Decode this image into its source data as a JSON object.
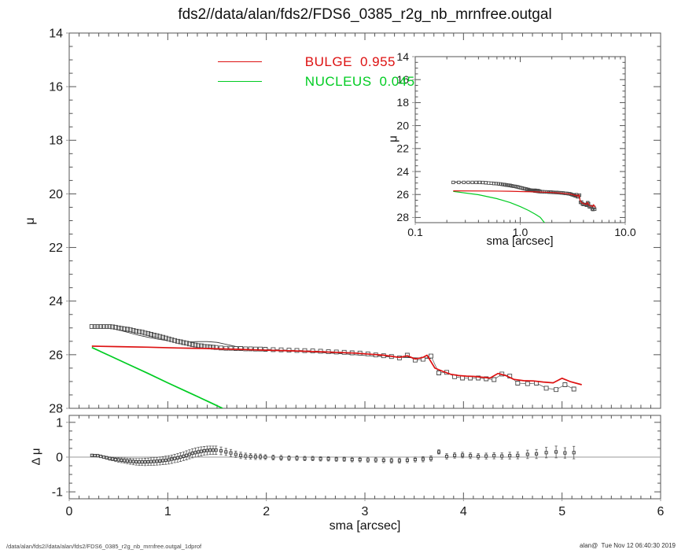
{
  "title": "fds2//data/alan/fds2/FDS6_0385_r2g_nb_mrnfree.outgal",
  "footer": {
    "left": "/data/alan/fds2//data/alan/fds2/FDS6_0385_r2g_nb_mrnfree.outgal_1dprof",
    "right": "alan@  Tue Nov 12 06:40:30 2019"
  },
  "legend": {
    "items": [
      {
        "label": "BULGE",
        "value": "0.955",
        "color": "#dd1111"
      },
      {
        "label": "NUCLEUS",
        "value": "0.045",
        "color": "#00cc22"
      }
    ]
  },
  "colors": {
    "background": "#ffffff",
    "axis": "#555555",
    "tick_label": "#1a1a1a",
    "data": "#4a4a4a",
    "model": "#2a2a2a",
    "bulge": "#dd1111",
    "nucleus": "#00cc22",
    "residual": "#666666",
    "zero_line": "#999999"
  },
  "chart_data": {
    "type": "line",
    "title": "fds2//data/alan/fds2/FDS6_0385_r2g_nb_mrnfree.outgal",
    "panels": [
      {
        "id": "main",
        "xlabel": "",
        "ylabel": "μ",
        "x_scale": "linear",
        "xlim": [
          0,
          6
        ],
        "ylim": [
          14,
          28
        ],
        "x_majors": [
          0,
          1,
          2,
          3,
          4,
          5,
          6
        ],
        "x_minor_step": 0.1,
        "x_tick_labels": null,
        "y_majors": [
          14,
          16,
          18,
          20,
          22,
          24,
          26,
          28
        ],
        "y_tick_labels": [
          "14",
          "16",
          "18",
          "20",
          "22",
          "24",
          "26",
          "28"
        ],
        "y_minor_step": 0.5,
        "grid": false,
        "series": [
          {
            "name": "data",
            "type": "squares",
            "line": true,
            "color": "#4a4a4a",
            "x": [
              0.23,
              0.26,
              0.29,
              0.32,
              0.35,
              0.38,
              0.41,
              0.44,
              0.47,
              0.5,
              0.53,
              0.56,
              0.59,
              0.62,
              0.65,
              0.68,
              0.71,
              0.74,
              0.77,
              0.8,
              0.83,
              0.86,
              0.89,
              0.92,
              0.95,
              0.98,
              1.01,
              1.04,
              1.07,
              1.1,
              1.13,
              1.16,
              1.19,
              1.22,
              1.25,
              1.28,
              1.31,
              1.34,
              1.37,
              1.4,
              1.43,
              1.46,
              1.49,
              1.54,
              1.59,
              1.64,
              1.69,
              1.74,
              1.79,
              1.84,
              1.89,
              1.94,
              1.99,
              2.07,
              2.15,
              2.23,
              2.31,
              2.39,
              2.47,
              2.55,
              2.63,
              2.71,
              2.79,
              2.87,
              2.95,
              3.03,
              3.11,
              3.19,
              3.27,
              3.35,
              3.43,
              3.51,
              3.59,
              3.67,
              3.75,
              3.83,
              3.91,
              3.99,
              4.07,
              4.15,
              4.23,
              4.31,
              4.39,
              4.47,
              4.55,
              4.65,
              4.74,
              4.84,
              4.94,
              5.03,
              5.12
            ],
            "y": [
              24.95,
              24.95,
              24.95,
              24.95,
              24.95,
              24.95,
              24.95,
              24.96,
              24.98,
              25.0,
              25.02,
              25.04,
              25.05,
              25.07,
              25.09,
              25.12,
              25.14,
              25.16,
              25.19,
              25.21,
              25.24,
              25.27,
              25.29,
              25.32,
              25.35,
              25.38,
              25.41,
              25.44,
              25.47,
              25.5,
              25.52,
              25.55,
              25.57,
              25.6,
              25.62,
              25.64,
              25.66,
              25.67,
              25.69,
              25.7,
              25.71,
              25.72,
              25.73,
              25.75,
              25.76,
              25.76,
              25.77,
              25.77,
              25.78,
              25.78,
              25.79,
              25.79,
              25.8,
              25.81,
              25.82,
              25.83,
              25.84,
              25.85,
              25.86,
              25.87,
              25.89,
              25.9,
              25.91,
              25.93,
              25.94,
              25.97,
              26.01,
              26.04,
              26.07,
              26.12,
              26.02,
              26.2,
              26.17,
              26.05,
              26.68,
              26.66,
              26.82,
              26.87,
              26.87,
              26.87,
              26.9,
              26.93,
              26.72,
              26.8,
              27.06,
              27.08,
              27.06,
              27.25,
              27.3,
              27.12,
              27.28
            ]
          },
          {
            "name": "model",
            "type": "line",
            "color": "#2a2a2a",
            "width": 0.8,
            "x": [
              0.23,
              0.3,
              0.4,
              0.5,
              0.6,
              0.7,
              0.8,
              0.9,
              1.0,
              1.1,
              1.2,
              1.3,
              1.4,
              1.5,
              1.6,
              1.7,
              1.8,
              1.9,
              2.0,
              2.2,
              2.4,
              2.6,
              2.8,
              3.0,
              3.2,
              3.4,
              3.6,
              3.67
            ],
            "y": [
              24.9,
              24.92,
              24.99,
              25.08,
              25.17,
              25.27,
              25.35,
              25.42,
              25.48,
              25.52,
              25.52,
              25.51,
              25.51,
              25.54,
              25.62,
              25.7,
              25.76,
              25.78,
              25.8,
              25.85,
              25.89,
              25.93,
              25.97,
              26.03,
              26.07,
              26.1,
              26.13,
              26.14
            ]
          },
          {
            "name": "bulge",
            "label": "BULGE",
            "fraction": 0.955,
            "type": "line",
            "color": "#dd1111",
            "width": 1.7,
            "x": [
              0.23,
              0.5,
              0.8,
              1.1,
              1.4,
              1.7,
              2.0,
              2.3,
              2.6,
              2.9,
              3.05,
              3.19,
              3.27,
              3.35,
              3.43,
              3.51,
              3.59,
              3.63,
              3.71,
              3.79,
              3.87,
              3.95,
              4.03,
              4.11,
              4.19,
              4.27,
              4.35,
              4.43,
              4.51,
              4.61,
              4.71,
              4.81,
              4.91,
              5.0,
              5.08,
              5.2
            ],
            "y": [
              25.68,
              25.7,
              25.72,
              25.75,
              25.77,
              25.8,
              25.83,
              25.86,
              25.9,
              25.94,
              25.98,
              26.02,
              26.06,
              26.1,
              26.04,
              26.16,
              26.1,
              26.02,
              26.5,
              26.62,
              26.73,
              26.78,
              26.8,
              26.81,
              26.84,
              26.87,
              26.7,
              26.78,
              26.92,
              26.97,
              26.98,
              27.02,
              27.05,
              26.88,
              27.0,
              27.12
            ]
          },
          {
            "name": "nucleus",
            "label": "NUCLEUS",
            "fraction": 0.045,
            "type": "line",
            "color": "#00cc22",
            "width": 1.7,
            "x": [
              0.23,
              0.4,
              0.6,
              0.8,
              1.0,
              1.2,
              1.4,
              1.55,
              1.72
            ],
            "y": [
              25.73,
              26.02,
              26.36,
              26.7,
              27.05,
              27.39,
              27.73,
              27.99,
              28.5
            ]
          }
        ]
      },
      {
        "id": "inset",
        "xlabel": "sma [arcsec]",
        "ylabel": "μ",
        "x_scale": "log",
        "xlim": [
          0.1,
          10
        ],
        "ylim": [
          14,
          28.45
        ],
        "x_majors": [
          0.1,
          1,
          10
        ],
        "x_tick_labels": [
          "0.1",
          "1.0",
          "10.0"
        ],
        "x_minors": [
          0.2,
          0.3,
          0.4,
          0.5,
          0.6,
          0.7,
          0.8,
          0.9,
          2,
          3,
          4,
          5,
          6,
          7,
          8,
          9
        ],
        "y_majors": [
          14,
          16,
          18,
          20,
          22,
          24,
          26,
          28
        ],
        "y_tick_labels": [
          "14",
          "16",
          "18",
          "20",
          "22",
          "24",
          "26",
          "28"
        ],
        "y_minor_step": 0.5,
        "grid": false,
        "series_from": 0
      },
      {
        "id": "residual",
        "xlabel": "sma [arcsec]",
        "ylabel": "Δ μ",
        "x_scale": "linear",
        "xlim": [
          0,
          6
        ],
        "ylim": [
          1.2,
          -1.2
        ],
        "x_majors": [
          0,
          1,
          2,
          3,
          4,
          5,
          6
        ],
        "x_minor_step": 0.1,
        "x_tick_labels": [
          "0",
          "1",
          "2",
          "3",
          "4",
          "5",
          "6"
        ],
        "y_majors": [
          1,
          0,
          -1
        ],
        "y_tick_labels": [
          "1",
          "0",
          "-1"
        ],
        "y_minor_step": 0.25,
        "zero_line": true,
        "grid": false,
        "series": [
          {
            "name": "delta_mu",
            "type": "errbar",
            "color": "#666666",
            "x_from": {
              "panel": 0,
              "series": "data"
            },
            "y": [
              0.05,
              0.045,
              0.04,
              0.02,
              0.0,
              -0.02,
              -0.04,
              -0.055,
              -0.07,
              -0.08,
              -0.09,
              -0.1,
              -0.11,
              -0.12,
              -0.13,
              -0.135,
              -0.14,
              -0.14,
              -0.14,
              -0.135,
              -0.13,
              -0.125,
              -0.12,
              -0.11,
              -0.1,
              -0.09,
              -0.08,
              -0.06,
              -0.04,
              -0.02,
              0.0,
              0.025,
              0.05,
              0.08,
              0.11,
              0.13,
              0.15,
              0.165,
              0.18,
              0.19,
              0.2,
              0.2,
              0.2,
              0.18,
              0.15,
              0.12,
              0.08,
              0.05,
              0.03,
              0.02,
              0.01,
              0.01,
              0.0,
              -0.01,
              -0.02,
              -0.03,
              -0.03,
              -0.04,
              -0.04,
              -0.05,
              -0.05,
              -0.06,
              -0.06,
              -0.07,
              -0.07,
              -0.08,
              -0.08,
              -0.09,
              -0.1,
              -0.1,
              -0.09,
              -0.07,
              -0.06,
              -0.04,
              0.15,
              0.02,
              0.05,
              0.06,
              0.04,
              0.02,
              0.03,
              0.04,
              0.03,
              0.04,
              0.05,
              0.08,
              0.09,
              0.13,
              0.15,
              0.12,
              0.13
            ],
            "err": [
              0.02,
              0.02,
              0.025,
              0.03,
              0.035,
              0.04,
              0.045,
              0.05,
              0.06,
              0.065,
              0.07,
              0.075,
              0.08,
              0.085,
              0.09,
              0.095,
              0.1,
              0.1,
              0.105,
              0.105,
              0.11,
              0.11,
              0.11,
              0.115,
              0.115,
              0.12,
              0.12,
              0.12,
              0.12,
              0.125,
              0.125,
              0.125,
              0.13,
              0.13,
              0.13,
              0.13,
              0.13,
              0.13,
              0.125,
              0.125,
              0.12,
              0.12,
              0.12,
              0.11,
              0.1,
              0.1,
              0.09,
              0.09,
              0.085,
              0.08,
              0.08,
              0.075,
              0.07,
              0.07,
              0.07,
              0.065,
              0.065,
              0.06,
              0.06,
              0.06,
              0.06,
              0.06,
              0.06,
              0.065,
              0.065,
              0.07,
              0.07,
              0.07,
              0.07,
              0.07,
              0.07,
              0.07,
              0.075,
              0.075,
              0.06,
              0.08,
              0.08,
              0.08,
              0.08,
              0.08,
              0.085,
              0.09,
              0.09,
              0.1,
              0.1,
              0.12,
              0.13,
              0.15,
              0.17,
              0.15,
              0.18
            ]
          }
        ]
      }
    ]
  }
}
